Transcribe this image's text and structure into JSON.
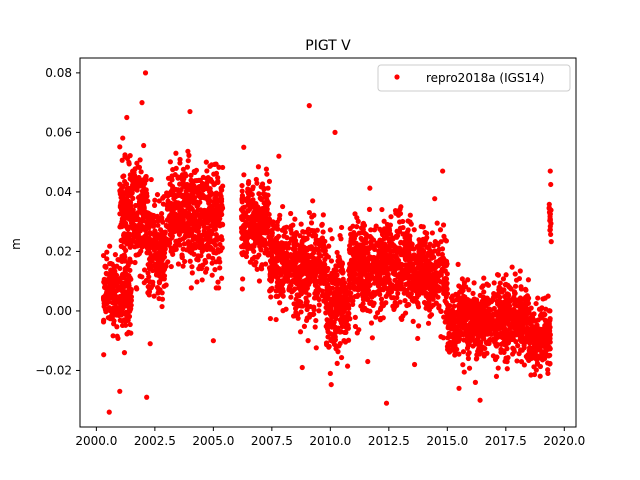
{
  "chart_data": {
    "type": "scatter",
    "title": "PIGT V",
    "xlabel": "",
    "ylabel": "m",
    "xlim": [
      1999.3,
      2020.5
    ],
    "ylim": [
      -0.039,
      0.085
    ],
    "xticks": [
      2000.0,
      2002.5,
      2005.0,
      2007.5,
      2010.0,
      2012.5,
      2015.0,
      2017.5,
      2020.0
    ],
    "xtick_labels": [
      "2000.0",
      "2002.5",
      "2005.0",
      "2007.5",
      "2010.0",
      "2012.5",
      "2015.0",
      "2017.5",
      "2020.0"
    ],
    "yticks": [
      -0.02,
      0.0,
      0.02,
      0.04,
      0.06,
      0.08
    ],
    "ytick_labels": [
      "−0.02",
      "0.00",
      "0.02",
      "0.04",
      "0.06",
      "0.08"
    ],
    "grid": false,
    "legend_position": "top-right",
    "series": [
      {
        "name": "repro2018a (IGS14)",
        "color": "#ff0000",
        "marker": "circle",
        "segments": [
          {
            "x0": 2000.3,
            "x1": 2001.5,
            "mean": 0.006,
            "spread": 0.007,
            "count": 260
          },
          {
            "x0": 2001.0,
            "x1": 2002.2,
            "mean": 0.032,
            "spread": 0.01,
            "count": 320
          },
          {
            "x0": 2002.2,
            "x1": 2003.0,
            "mean": 0.02,
            "spread": 0.009,
            "count": 200
          },
          {
            "x0": 2003.0,
            "x1": 2004.5,
            "mean": 0.032,
            "spread": 0.01,
            "count": 380
          },
          {
            "x0": 2004.5,
            "x1": 2005.4,
            "mean": 0.03,
            "spread": 0.01,
            "count": 220
          },
          {
            "x0": 2006.2,
            "x1": 2007.4,
            "mean": 0.03,
            "spread": 0.008,
            "count": 300
          },
          {
            "x0": 2007.4,
            "x1": 2008.5,
            "mean": 0.016,
            "spread": 0.009,
            "count": 280
          },
          {
            "x0": 2008.5,
            "x1": 2009.8,
            "mean": 0.013,
            "spread": 0.009,
            "count": 330
          },
          {
            "x0": 2009.8,
            "x1": 2010.8,
            "mean": 0.004,
            "spread": 0.01,
            "count": 260
          },
          {
            "x0": 2010.8,
            "x1": 2012.3,
            "mean": 0.014,
            "spread": 0.009,
            "count": 380
          },
          {
            "x0": 2012.3,
            "x1": 2013.5,
            "mean": 0.016,
            "spread": 0.009,
            "count": 300
          },
          {
            "x0": 2013.5,
            "x1": 2015.0,
            "mean": 0.012,
            "spread": 0.008,
            "count": 380
          },
          {
            "x0": 2015.0,
            "x1": 2016.5,
            "mean": -0.004,
            "spread": 0.007,
            "count": 380
          },
          {
            "x0": 2016.5,
            "x1": 2018.5,
            "mean": -0.003,
            "spread": 0.007,
            "count": 500
          },
          {
            "x0": 2018.5,
            "x1": 2019.4,
            "mean": -0.009,
            "spread": 0.006,
            "count": 230
          },
          {
            "x0": 2019.35,
            "x1": 2019.45,
            "mean": 0.032,
            "spread": 0.005,
            "count": 20
          }
        ],
        "outliers": [
          [
            2000.55,
            -0.034
          ],
          [
            2001.0,
            -0.027
          ],
          [
            2002.15,
            -0.029
          ],
          [
            2002.1,
            0.08
          ],
          [
            2001.95,
            0.07
          ],
          [
            2001.3,
            0.065
          ],
          [
            2004.0,
            0.067
          ],
          [
            2009.1,
            0.069
          ],
          [
            2010.2,
            0.06
          ],
          [
            2012.4,
            -0.031
          ],
          [
            2016.4,
            -0.03
          ],
          [
            2017.1,
            -0.022
          ],
          [
            2005.0,
            -0.01
          ],
          [
            2008.8,
            -0.019
          ],
          [
            2011.6,
            -0.017
          ],
          [
            2013.6,
            -0.018
          ],
          [
            2006.3,
            0.055
          ],
          [
            2007.8,
            0.052
          ],
          [
            2014.8,
            0.047
          ],
          [
            2019.4,
            0.047
          ],
          [
            2002.3,
            -0.011
          ],
          [
            2004.7,
            0.05
          ],
          [
            2003.4,
            0.053
          ],
          [
            2001.2,
            -0.014
          ],
          [
            2010.0,
            -0.021
          ],
          [
            2015.5,
            -0.026
          ],
          [
            2016.2,
            -0.024
          ],
          [
            2019.3,
            -0.021
          ]
        ]
      }
    ]
  }
}
